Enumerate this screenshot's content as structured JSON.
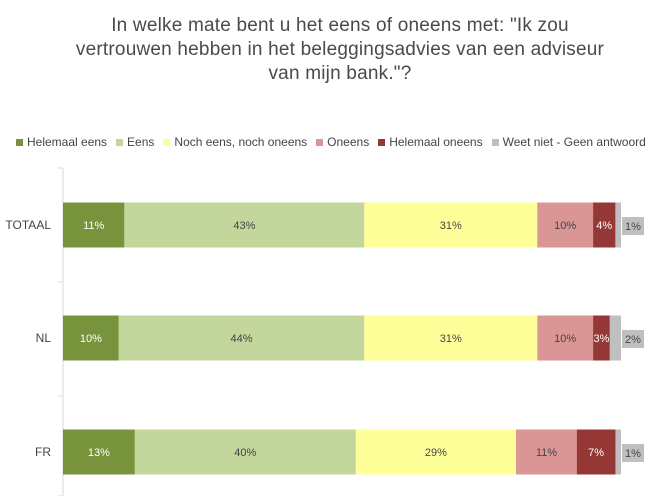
{
  "chart_data": {
    "type": "bar",
    "orientation": "horizontal",
    "stacked": true,
    "percent": true,
    "title_lines": [
      "In welke mate bent u het eens of oneens met: \"Ik zou",
      "vertrouwen hebben in het beleggingsadvies van een adviseur",
      "van mijn bank.\"?"
    ],
    "categories": [
      "TOTAAL",
      "NL",
      "FR"
    ],
    "legend_position": "top",
    "grid": false,
    "series": [
      {
        "name": "Helemaal eens",
        "color": "#77933c",
        "values": [
          11,
          10,
          13
        ],
        "labels": [
          "11%",
          "10%",
          "13%"
        ]
      },
      {
        "name": "Eens",
        "color": "#c3d69b",
        "values": [
          43,
          44,
          40
        ],
        "labels": [
          "43%",
          "44%",
          "40%"
        ]
      },
      {
        "name": "Noch eens, noch oneens",
        "color": "#ffff99",
        "values": [
          31,
          31,
          29
        ],
        "labels": [
          "31%",
          "31%",
          "29%"
        ]
      },
      {
        "name": "Oneens",
        "color": "#d99694",
        "values": [
          10,
          10,
          11
        ],
        "labels": [
          "10%",
          "10%",
          "11%"
        ]
      },
      {
        "name": "Helemaal oneens",
        "color": "#953735",
        "values": [
          4,
          3,
          7
        ],
        "labels": [
          "4%",
          "3%",
          "7%"
        ]
      },
      {
        "name": "Weet niet - Geen antwoord",
        "color": "#bfbfbf",
        "values": [
          1,
          2,
          1
        ],
        "labels": [
          "1%",
          "2%",
          "1%"
        ]
      }
    ]
  }
}
